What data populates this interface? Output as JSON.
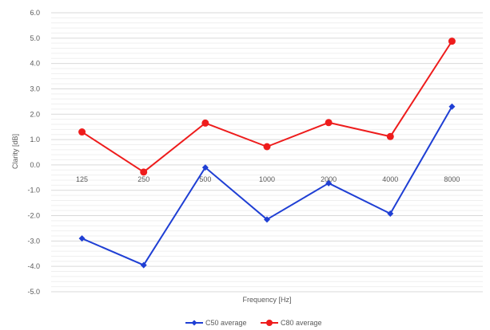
{
  "chart_data": {
    "type": "line",
    "title": "",
    "xlabel": "Frequency [Hz]",
    "ylabel": "Clarity [dB]",
    "categories": [
      "125",
      "250",
      "500",
      "1000",
      "2000",
      "4000",
      "8000"
    ],
    "ylim": [
      -5.0,
      6.0
    ],
    "ytick_step": 1.0,
    "yticks": [
      "6.0",
      "5.0",
      "4.0",
      "3.0",
      "2.0",
      "1.0",
      "0.0",
      "-1.0",
      "-2.0",
      "-3.0",
      "-4.0",
      "-5.0"
    ],
    "minor_step": 0.2,
    "grid": true,
    "legend_position": "bottom",
    "series": [
      {
        "name": "C50 average",
        "color": "#1f3fd4",
        "marker": "diamond",
        "values": [
          -2.9,
          -3.95,
          -0.1,
          -2.15,
          -0.72,
          -1.92,
          2.3
        ]
      },
      {
        "name": "C80 average",
        "color": "#ee1c1c",
        "marker": "circle",
        "values": [
          1.3,
          -0.28,
          1.65,
          0.72,
          1.67,
          1.12,
          4.88
        ]
      }
    ]
  }
}
